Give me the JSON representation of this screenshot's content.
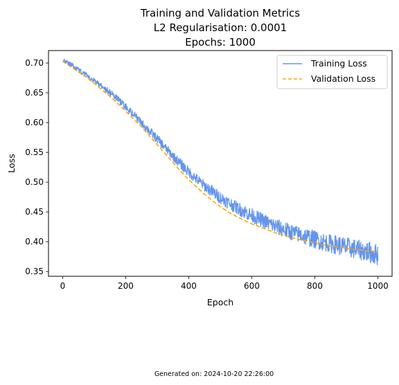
{
  "chart_data": {
    "type": "line",
    "title_lines": [
      "Training and Validation Metrics",
      "L2 Regularisation: 0.0001",
      "Epochs: 1000"
    ],
    "xlabel": "Epoch",
    "ylabel": "Loss",
    "xlim": [
      -45,
      1045
    ],
    "ylim": [
      0.342,
      0.721
    ],
    "xticks": [
      0,
      200,
      400,
      600,
      800,
      1000
    ],
    "xtick_labels": [
      "0",
      "200",
      "400",
      "600",
      "800",
      "1000"
    ],
    "yticks": [
      0.35,
      0.4,
      0.45,
      0.5,
      0.55,
      0.6,
      0.65,
      0.7
    ],
    "ytick_labels": [
      "0.35",
      "0.40",
      "0.45",
      "0.50",
      "0.55",
      "0.60",
      "0.65",
      "0.70"
    ],
    "grid": false,
    "legend_position": "top-right",
    "series": [
      {
        "name": "Training Loss",
        "color": "#6495ED",
        "style": "solid",
        "x": [
          0,
          25,
          50,
          75,
          100,
          125,
          150,
          175,
          200,
          225,
          250,
          275,
          300,
          325,
          350,
          375,
          400,
          425,
          450,
          475,
          500,
          525,
          550,
          575,
          600,
          625,
          650,
          675,
          700,
          725,
          750,
          775,
          800,
          825,
          850,
          875,
          900,
          925,
          950,
          975,
          1000
        ],
        "values": [
          0.705,
          0.698,
          0.688,
          0.68,
          0.67,
          0.661,
          0.651,
          0.639,
          0.626,
          0.614,
          0.6,
          0.586,
          0.573,
          0.558,
          0.544,
          0.53,
          0.517,
          0.505,
          0.494,
          0.484,
          0.474,
          0.466,
          0.458,
          0.451,
          0.444,
          0.438,
          0.432,
          0.426,
          0.421,
          0.416,
          0.412,
          0.408,
          0.404,
          0.4,
          0.397,
          0.394,
          0.391,
          0.388,
          0.385,
          0.382,
          0.378
        ],
        "noise_amplitude": [
          0.002,
          0.003,
          0.003,
          0.003,
          0.003,
          0.003,
          0.004,
          0.004,
          0.004,
          0.004,
          0.004,
          0.005,
          0.005,
          0.005,
          0.005,
          0.006,
          0.006,
          0.006,
          0.006,
          0.007,
          0.007,
          0.007,
          0.007,
          0.008,
          0.008,
          0.008,
          0.008,
          0.009,
          0.009,
          0.009,
          0.009,
          0.01,
          0.01,
          0.01,
          0.01,
          0.011,
          0.011,
          0.011,
          0.011,
          0.012,
          0.012
        ]
      },
      {
        "name": "Validation Loss",
        "color": "#FFA500",
        "style": "dashed",
        "x": [
          0,
          25,
          50,
          75,
          100,
          125,
          150,
          175,
          200,
          225,
          250,
          275,
          300,
          325,
          350,
          375,
          400,
          425,
          450,
          475,
          500,
          525,
          550,
          575,
          600,
          625,
          650,
          675,
          700,
          725,
          750,
          775,
          800,
          825,
          850,
          875,
          900,
          925,
          950,
          975,
          1000
        ],
        "values": [
          0.703,
          0.694,
          0.685,
          0.676,
          0.666,
          0.655,
          0.644,
          0.632,
          0.619,
          0.606,
          0.593,
          0.578,
          0.563,
          0.548,
          0.533,
          0.518,
          0.504,
          0.492,
          0.48,
          0.469,
          0.459,
          0.45,
          0.443,
          0.436,
          0.43,
          0.425,
          0.42,
          0.415,
          0.411,
          0.407,
          0.404,
          0.401,
          0.398,
          0.395,
          0.393,
          0.391,
          0.389,
          0.387,
          0.386,
          0.384,
          0.383
        ]
      }
    ]
  },
  "footer": {
    "generated_text": "Generated on: 2024-10-20 22:26:00"
  }
}
